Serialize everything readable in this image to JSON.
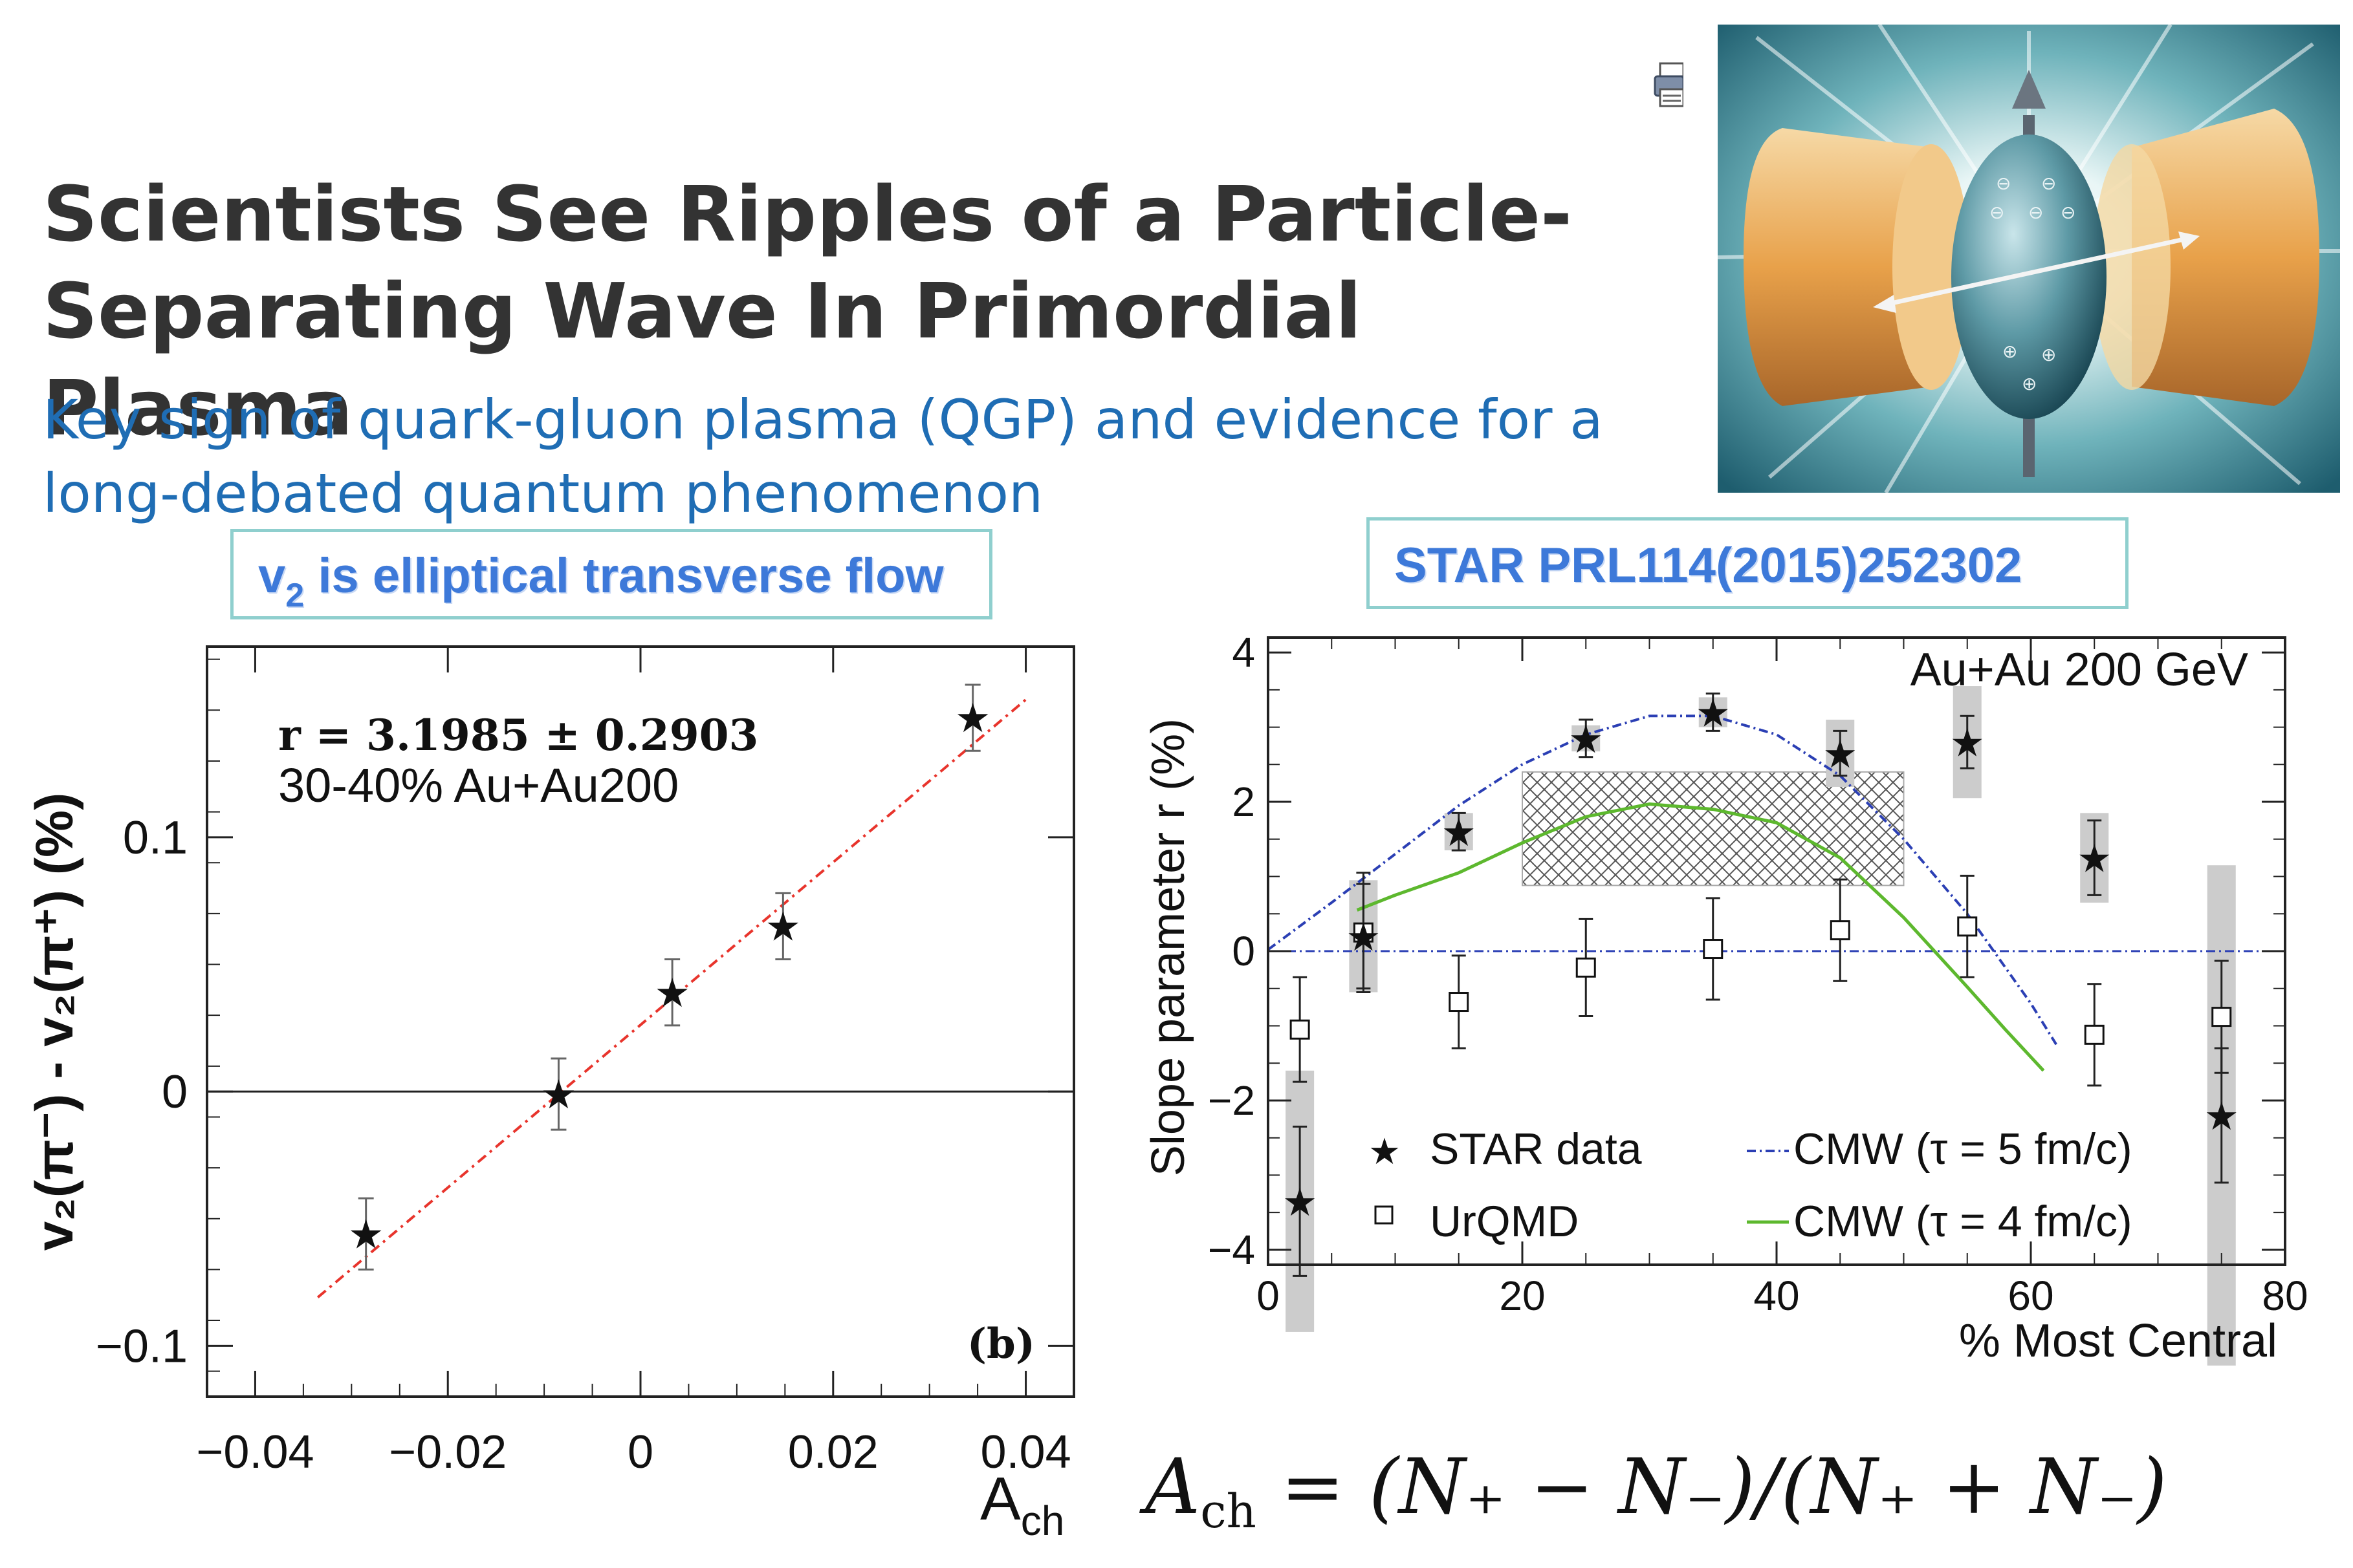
{
  "headline": {
    "line1": "Scientists See Ripples of a Particle-",
    "line2": "Separating Wave In Primordial Plasma"
  },
  "subheadline": {
    "line1": "Key sign of quark-gluon plasma (QGP) and evidence for a",
    "line2": "long-debated quantum phenomenon"
  },
  "callouts": {
    "v2_prefix": "v",
    "v2_sub": "2",
    "v2_rest": " is elliptical transverse flow",
    "reference": "STAR PRL114(2015)252302"
  },
  "illustration": {
    "charge_plus": "⊕",
    "charge_minus": "⊖"
  },
  "formula": {
    "lhs": "A",
    "lhs_sub": "ch",
    "eq": " = ",
    "rhs": "(N₊ − N₋)/(N₊ + N₋)"
  },
  "colors": {
    "title_gray": "#333333",
    "subtitle_blue": "#1f6db4",
    "callout_border": "#8fcfce",
    "callout_text": "#3d79d9",
    "fit_red": "#e8342c",
    "cmw5_blue": "#2b3fb4",
    "cmw4_green": "#5db82e",
    "syst_gray": "#cccccc"
  },
  "chart_data": [
    {
      "type": "scatter",
      "panel_label": "(b)",
      "xlabel_main": "A",
      "xlabel_sub": "ch",
      "ylabel": "v₂(π⁻) - v₂(π⁺) (%)",
      "xlim": [
        -0.045,
        0.045
      ],
      "ylim": [
        -0.12,
        0.175
      ],
      "xticks": [
        -0.04,
        -0.02,
        0,
        0.02,
        0.04
      ],
      "xtick_labels": [
        "−0.04",
        "−0.02",
        "0",
        "0.02",
        "0.04"
      ],
      "yticks": [
        -0.1,
        0,
        0.1
      ],
      "ytick_labels": [
        "−0.1",
        "0",
        "0.1"
      ],
      "annotation_fit": "r = 3.1985  ± 0.2903",
      "annotation_system": "30-40%   Au+Au200",
      "series": [
        {
          "name": "data",
          "marker": "star",
          "x": [
            -0.0285,
            -0.0085,
            0.0033,
            0.0148,
            0.0345
          ],
          "y": [
            -0.056,
            -0.001,
            0.039,
            0.065,
            0.147
          ],
          "err": [
            0.014,
            0.014,
            0.013,
            0.013,
            0.013
          ]
        }
      ],
      "fit": {
        "slope": 3.1985,
        "intercept": 0.0262,
        "x_range": [
          -0.0335,
          0.04
        ],
        "style": "dash-dot",
        "color": "#e8342c"
      }
    },
    {
      "type": "scatter",
      "annotation": "Au+Au 200 GeV",
      "xlabel": "% Most Central",
      "ylabel": "Slope parameter r (%)",
      "xlim": [
        0,
        80
      ],
      "ylim": [
        -4.2,
        4.2
      ],
      "xticks": [
        0,
        20,
        40,
        60,
        80
      ],
      "xtick_labels": [
        "0",
        "20",
        "40",
        "60",
        "80"
      ],
      "yticks": [
        -4,
        -2,
        0,
        2,
        4
      ],
      "ytick_labels": [
        "−4",
        "−2",
        "0",
        "2",
        "4"
      ],
      "legend": {
        "star": "STAR data",
        "urqmd": "UrQMD",
        "cmw5": "CMW (τ = 5 fm/c)",
        "cmw4": "CMW (τ = 4 fm/c)"
      },
      "series": [
        {
          "name": "STAR data",
          "marker": "star",
          "x": [
            2.5,
            7.5,
            15,
            25,
            35,
            45,
            55,
            65,
            75
          ],
          "y": [
            -3.35,
            0.2,
            1.6,
            2.85,
            3.2,
            2.65,
            2.8,
            1.25,
            -2.2
          ],
          "err": [
            1.0,
            0.7,
            0.25,
            0.25,
            0.25,
            0.3,
            0.35,
            0.5,
            0.9
          ],
          "syst": [
            3.5,
            1.5,
            0.5,
            0.35,
            0.4,
            0.9,
            1.5,
            1.2,
            6.7
          ]
        },
        {
          "name": "UrQMD",
          "marker": "open-square",
          "x": [
            2.5,
            7.5,
            15,
            25,
            35,
            45,
            55,
            65,
            75
          ],
          "y": [
            -1.05,
            0.25,
            -0.68,
            -0.22,
            0.03,
            0.28,
            0.33,
            -1.12,
            -0.88
          ],
          "err": [
            0.7,
            0.8,
            0.62,
            0.65,
            0.68,
            0.68,
            0.68,
            0.68,
            0.75
          ]
        },
        {
          "name": "CMW (τ = 5 fm/c)",
          "style": "dash-dot",
          "x": [
            0,
            5,
            10,
            15,
            20,
            25,
            30,
            35,
            40,
            45,
            50,
            55,
            60,
            62
          ],
          "y": [
            0.02,
            0.65,
            1.3,
            1.95,
            2.5,
            2.9,
            3.15,
            3.15,
            2.9,
            2.35,
            1.5,
            0.5,
            -0.7,
            -1.25
          ]
        },
        {
          "name": "CMW (τ = 4 fm/c)",
          "style": "solid",
          "x": [
            7,
            10,
            15,
            20,
            25,
            30,
            35,
            40,
            45,
            50,
            55,
            58,
            61
          ],
          "y": [
            0.55,
            0.75,
            1.05,
            1.45,
            1.8,
            1.97,
            1.9,
            1.72,
            1.25,
            0.45,
            -0.48,
            -1.05,
            -1.6
          ]
        },
        {
          "name": "band",
          "style": "crosshatch",
          "x_range": [
            20,
            50
          ],
          "y_range": [
            0.88,
            2.4
          ]
        }
      ]
    }
  ]
}
